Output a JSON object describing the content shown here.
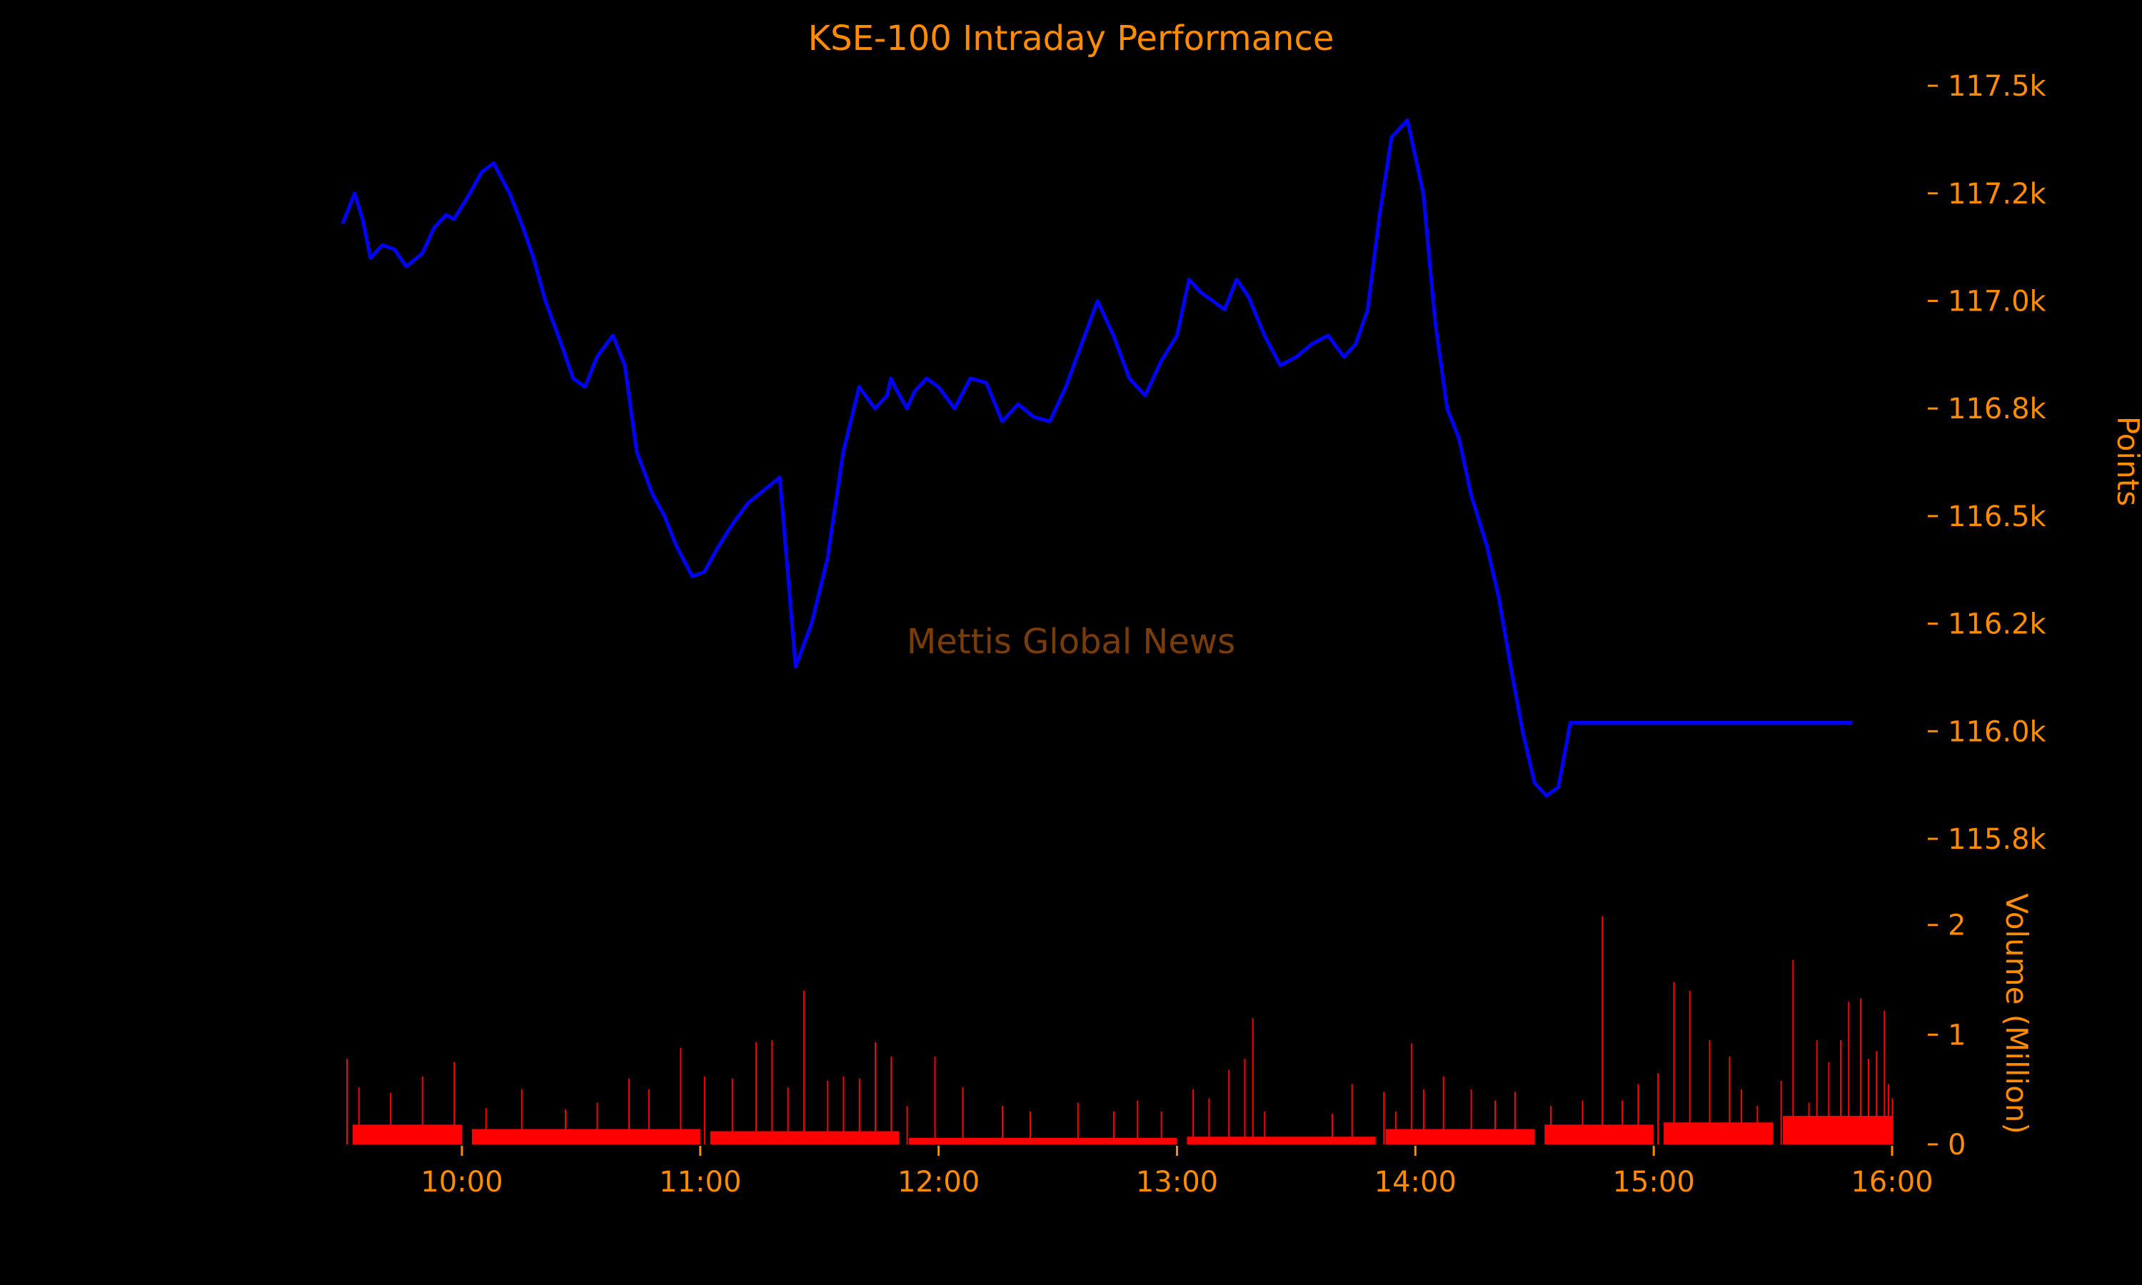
{
  "colors": {
    "background": "#000000",
    "text": "#ff8c00",
    "price_line": "#0000ff",
    "volume_bars": "#ff0000",
    "watermark": "#7a3d08"
  },
  "watermark": "Mettis Global News",
  "chart_data": [
    {
      "type": "line",
      "title": "KSE-100 Intraday Performance",
      "ylabel": "Points",
      "xlim": [
        "09:30",
        "16:00"
      ],
      "ylim": [
        115750,
        117550
      ],
      "y_axis_side": "right",
      "grid": false,
      "yticks": [
        115750,
        116000,
        116250,
        116500,
        116750,
        117000,
        117250,
        117500
      ],
      "ytick_labels": [
        "115.8k",
        "116.0k",
        "116.2k",
        "116.5k",
        "116.8k",
        "117.0k",
        "117.2k",
        "117.5k"
      ],
      "series": [
        {
          "x": [
            "09:30",
            "09:33",
            "09:35",
            "09:37",
            "09:40",
            "09:43",
            "09:46",
            "09:50",
            "09:53",
            "09:56",
            "09:58",
            "10:02",
            "10:05",
            "10:08",
            "10:12",
            "10:15",
            "10:18",
            "10:21",
            "10:25",
            "10:28",
            "10:31",
            "10:34",
            "10:38",
            "10:41",
            "10:44",
            "10:48",
            "10:51",
            "10:54",
            "10:58",
            "11:01",
            "11:04",
            "11:08",
            "11:12",
            "11:16",
            "11:20",
            "11:24",
            "11:28",
            "11:32",
            "11:36",
            "11:40",
            "11:44",
            "11:47",
            "11:48",
            "11:49",
            "11:52",
            "11:54",
            "11:57",
            "12:00",
            "12:04",
            "12:08",
            "12:12",
            "12:16",
            "12:20",
            "12:24",
            "12:28",
            "12:32",
            "12:36",
            "12:40",
            "12:44",
            "12:48",
            "12:52",
            "12:56",
            "13:00",
            "13:03",
            "13:06",
            "13:09",
            "13:12",
            "13:15",
            "13:18",
            "13:22",
            "13:26",
            "13:30",
            "13:34",
            "13:38",
            "13:42",
            "13:45",
            "13:48",
            "13:51",
            "13:54",
            "13:58",
            "14:02",
            "14:05",
            "14:08",
            "14:11",
            "14:14",
            "14:18",
            "14:21",
            "14:24",
            "14:27",
            "14:30",
            "14:33",
            "14:36",
            "14:39",
            "14:40",
            "14:42",
            "14:44",
            "14:47",
            "14:50",
            "14:53",
            "14:56",
            "15:00",
            "15:04",
            "15:07",
            "15:10",
            "15:14",
            "15:17",
            "15:20",
            "15:23",
            "15:26",
            "15:28",
            "15:30",
            "15:31",
            "15:50"
          ],
          "values": [
            117180,
            117250,
            117190,
            117100,
            117130,
            117120,
            117080,
            117110,
            117170,
            117200,
            117190,
            117250,
            117300,
            117320,
            117250,
            117180,
            117100,
            117000,
            116900,
            116820,
            116800,
            116870,
            116920,
            116850,
            116650,
            116550,
            116500,
            116430,
            116360,
            116370,
            116420,
            116480,
            116530,
            116560,
            116590,
            116150,
            116250,
            116400,
            116650,
            116800,
            116750,
            116780,
            116820,
            116800,
            116750,
            116790,
            116820,
            116800,
            116750,
            116820,
            116810,
            116720,
            116760,
            116730,
            116720,
            116800,
            116900,
            117000,
            116920,
            116820,
            116780,
            116860,
            116920,
            117050,
            117020,
            117000,
            116980,
            117050,
            117010,
            116920,
            116850,
            116870,
            116900,
            116920,
            116870,
            116900,
            116980,
            117200,
            117380,
            117420,
            117250,
            116950,
            116750,
            116680,
            116550,
            116430,
            116310,
            116150,
            116000,
            115880,
            115850,
            115870,
            116020,
            116020,
            116020,
            116020,
            116020,
            116020,
            116020,
            116020,
            116020,
            116020,
            116020,
            116020,
            116020,
            116020,
            116020,
            116020,
            116020,
            116020,
            116020,
            116020,
            116020
          ]
        }
      ]
    },
    {
      "type": "bar",
      "ylabel": "Volume (Million)",
      "xlim": [
        "09:30",
        "16:00"
      ],
      "ylim": [
        0,
        2.2
      ],
      "y_axis_side": "right",
      "grid": false,
      "xticks": [
        "10:00",
        "11:00",
        "12:00",
        "13:00",
        "14:00",
        "15:00",
        "16:00"
      ],
      "yticks": [
        0,
        1,
        2
      ],
      "ytick_labels": [
        "0",
        "1",
        "2"
      ],
      "spikes": [
        {
          "x": "09:30",
          "value": 0.78
        },
        {
          "x": "09:33",
          "value": 0.52
        },
        {
          "x": "09:41",
          "value": 0.47
        },
        {
          "x": "09:49",
          "value": 0.62
        },
        {
          "x": "09:57",
          "value": 0.75
        },
        {
          "x": "10:05",
          "value": 0.33
        },
        {
          "x": "10:14",
          "value": 0.5
        },
        {
          "x": "10:25",
          "value": 0.32
        },
        {
          "x": "10:33",
          "value": 0.38
        },
        {
          "x": "10:41",
          "value": 0.6
        },
        {
          "x": "10:46",
          "value": 0.5
        },
        {
          "x": "10:54",
          "value": 0.88
        },
        {
          "x": "11:00",
          "value": 0.62
        },
        {
          "x": "11:07",
          "value": 0.6
        },
        {
          "x": "11:13",
          "value": 0.93
        },
        {
          "x": "11:17",
          "value": 0.95
        },
        {
          "x": "11:21",
          "value": 0.52
        },
        {
          "x": "11:25",
          "value": 1.4
        },
        {
          "x": "11:31",
          "value": 0.58
        },
        {
          "x": "11:35",
          "value": 0.62
        },
        {
          "x": "11:39",
          "value": 0.6
        },
        {
          "x": "11:43",
          "value": 0.93
        },
        {
          "x": "11:47",
          "value": 0.8
        },
        {
          "x": "11:51",
          "value": 0.35
        },
        {
          "x": "11:58",
          "value": 0.8
        },
        {
          "x": "12:05",
          "value": 0.52
        },
        {
          "x": "12:15",
          "value": 0.35
        },
        {
          "x": "12:22",
          "value": 0.3
        },
        {
          "x": "12:34",
          "value": 0.38
        },
        {
          "x": "12:43",
          "value": 0.3
        },
        {
          "x": "12:49",
          "value": 0.4
        },
        {
          "x": "12:55",
          "value": 0.3
        },
        {
          "x": "13:03",
          "value": 0.5
        },
        {
          "x": "13:07",
          "value": 0.42
        },
        {
          "x": "13:12",
          "value": 0.68
        },
        {
          "x": "13:16",
          "value": 0.78
        },
        {
          "x": "13:18",
          "value": 1.15
        },
        {
          "x": "13:21",
          "value": 0.3
        },
        {
          "x": "13:38",
          "value": 0.28
        },
        {
          "x": "13:43",
          "value": 0.55
        },
        {
          "x": "13:51",
          "value": 0.48
        },
        {
          "x": "13:54",
          "value": 0.3
        },
        {
          "x": "13:58",
          "value": 0.92
        },
        {
          "x": "14:01",
          "value": 0.5
        },
        {
          "x": "14:06",
          "value": 0.62
        },
        {
          "x": "14:13",
          "value": 0.5
        },
        {
          "x": "14:19",
          "value": 0.4
        },
        {
          "x": "14:24",
          "value": 0.48
        },
        {
          "x": "14:33",
          "value": 0.35
        },
        {
          "x": "14:41",
          "value": 0.4
        },
        {
          "x": "14:46",
          "value": 2.08
        },
        {
          "x": "14:51",
          "value": 0.4
        },
        {
          "x": "14:55",
          "value": 0.55
        },
        {
          "x": "15:00",
          "value": 0.65
        },
        {
          "x": "15:04",
          "value": 1.48
        },
        {
          "x": "15:08",
          "value": 1.4
        },
        {
          "x": "15:13",
          "value": 0.95
        },
        {
          "x": "15:18",
          "value": 0.8
        },
        {
          "x": "15:21",
          "value": 0.5
        },
        {
          "x": "15:25",
          "value": 0.35
        },
        {
          "x": "15:31",
          "value": 0.58
        },
        {
          "x": "15:34",
          "value": 1.68
        },
        {
          "x": "15:38",
          "value": 0.38
        },
        {
          "x": "15:40",
          "value": 0.95
        },
        {
          "x": "15:43",
          "value": 0.75
        },
        {
          "x": "15:46",
          "value": 0.95
        },
        {
          "x": "15:48",
          "value": 1.3
        },
        {
          "x": "15:51",
          "value": 1.33
        },
        {
          "x": "15:53",
          "value": 0.78
        },
        {
          "x": "15:55",
          "value": 0.85
        },
        {
          "x": "15:57",
          "value": 1.22
        },
        {
          "x": "15:58",
          "value": 0.55
        },
        {
          "x": "15:59",
          "value": 0.42
        }
      ],
      "base_band": [
        {
          "start": "09:30",
          "end": "10:00",
          "value": 0.18
        },
        {
          "start": "10:00",
          "end": "11:00",
          "value": 0.14
        },
        {
          "start": "11:00",
          "end": "11:50",
          "value": 0.12
        },
        {
          "start": "11:50",
          "end": "13:00",
          "value": 0.06
        },
        {
          "start": "13:00",
          "end": "13:50",
          "value": 0.07
        },
        {
          "start": "13:50",
          "end": "14:30",
          "value": 0.14
        },
        {
          "start": "14:30",
          "end": "15:00",
          "value": 0.18
        },
        {
          "start": "15:00",
          "end": "15:30",
          "value": 0.2
        },
        {
          "start": "15:30",
          "end": "16:00",
          "value": 0.26
        }
      ]
    }
  ]
}
